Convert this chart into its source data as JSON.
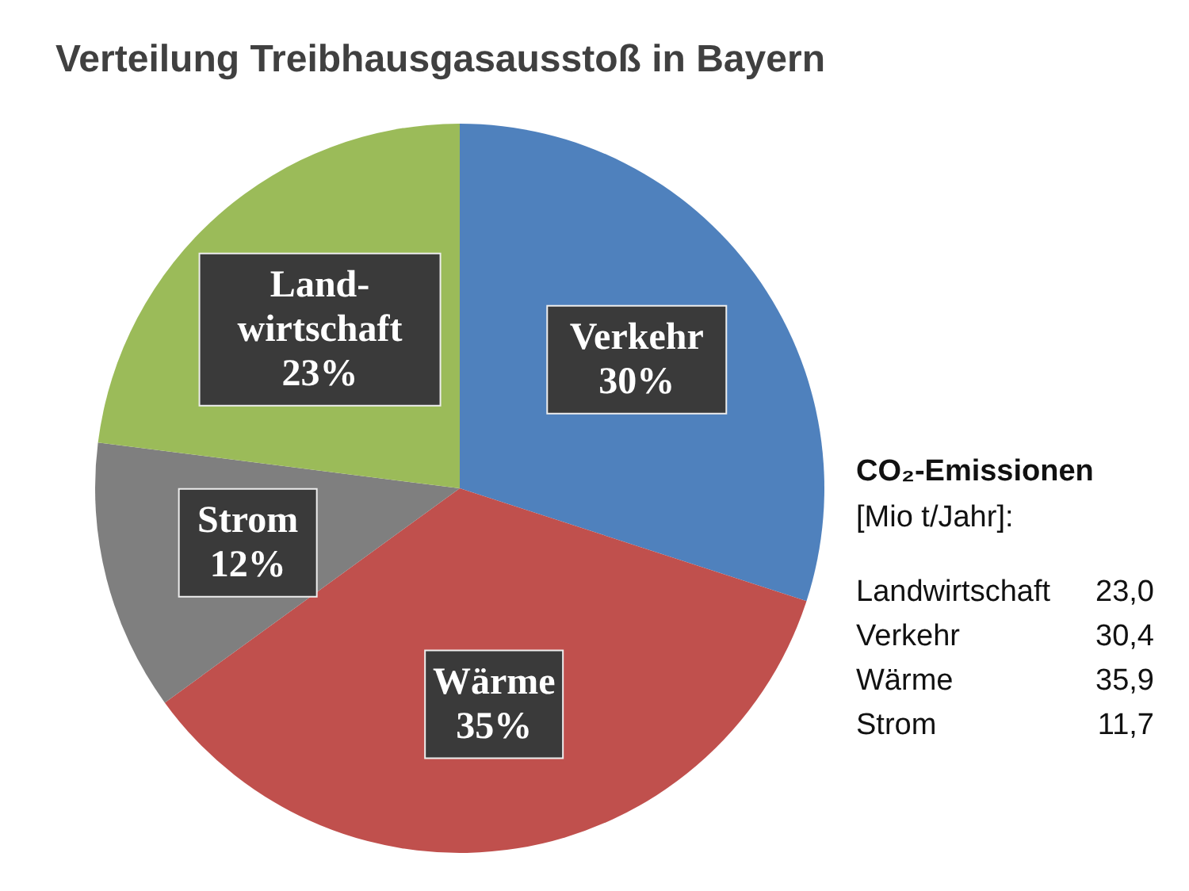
{
  "chart_data": {
    "type": "pie",
    "title": "Verteilung Treibhausgasausstoß in Bayern",
    "categories": [
      "Verkehr",
      "Wärme",
      "Strom",
      "Land-wirtschaft"
    ],
    "values": [
      30,
      35,
      12,
      23
    ],
    "value_labels": [
      "30%",
      "35%",
      "12%",
      "23%"
    ],
    "colors": [
      "#4f81bd",
      "#c0504d",
      "#7f7f7f",
      "#9bbb59"
    ],
    "annotations": [
      "CO₂-Emissionen",
      "[Mio t/Jahr]:",
      "Landwirtschaft 23,0",
      "Verkehr 30,4",
      "Wärme 35,9",
      "Strom 11,7"
    ]
  }
}
